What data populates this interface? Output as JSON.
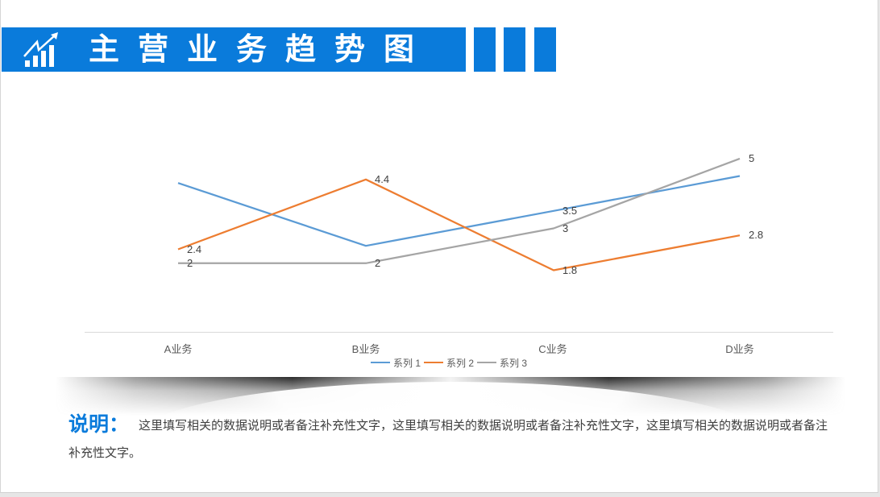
{
  "header": {
    "title": "主营业务趋势图",
    "icon": "chart-growth-icon",
    "accent_color": "#0a7bdb"
  },
  "chart_data": {
    "type": "line",
    "title": "",
    "xlabel": "",
    "ylabel": "",
    "ylim": [
      0,
      5.5
    ],
    "grid": false,
    "legend_position": "bottom",
    "categories": [
      "A业务",
      "B业务",
      "C业务",
      "D业务"
    ],
    "series": [
      {
        "name": "系列 1",
        "color": "#5b9bd5",
        "values": [
          4.3,
          2.5,
          3.5,
          4.5
        ],
        "labels": [
          "",
          "",
          "3.5",
          ""
        ]
      },
      {
        "name": "系列 2",
        "color": "#ed7d31",
        "values": [
          2.4,
          4.4,
          1.8,
          2.8
        ],
        "labels": [
          "2.4",
          "4.4",
          "1.8",
          "2.8"
        ]
      },
      {
        "name": "系列 3",
        "color": "#a5a5a5",
        "values": [
          2,
          2,
          3,
          5
        ],
        "labels": [
          "2",
          "2",
          "3",
          "5"
        ]
      }
    ]
  },
  "note": {
    "title": "说明：",
    "text": "这里填写相关的数据说明或者备注补充性文字，这里填写相关的数据说明或者备注补充性文字，这里填写相关的数据说明或者备注补充性文字。"
  }
}
